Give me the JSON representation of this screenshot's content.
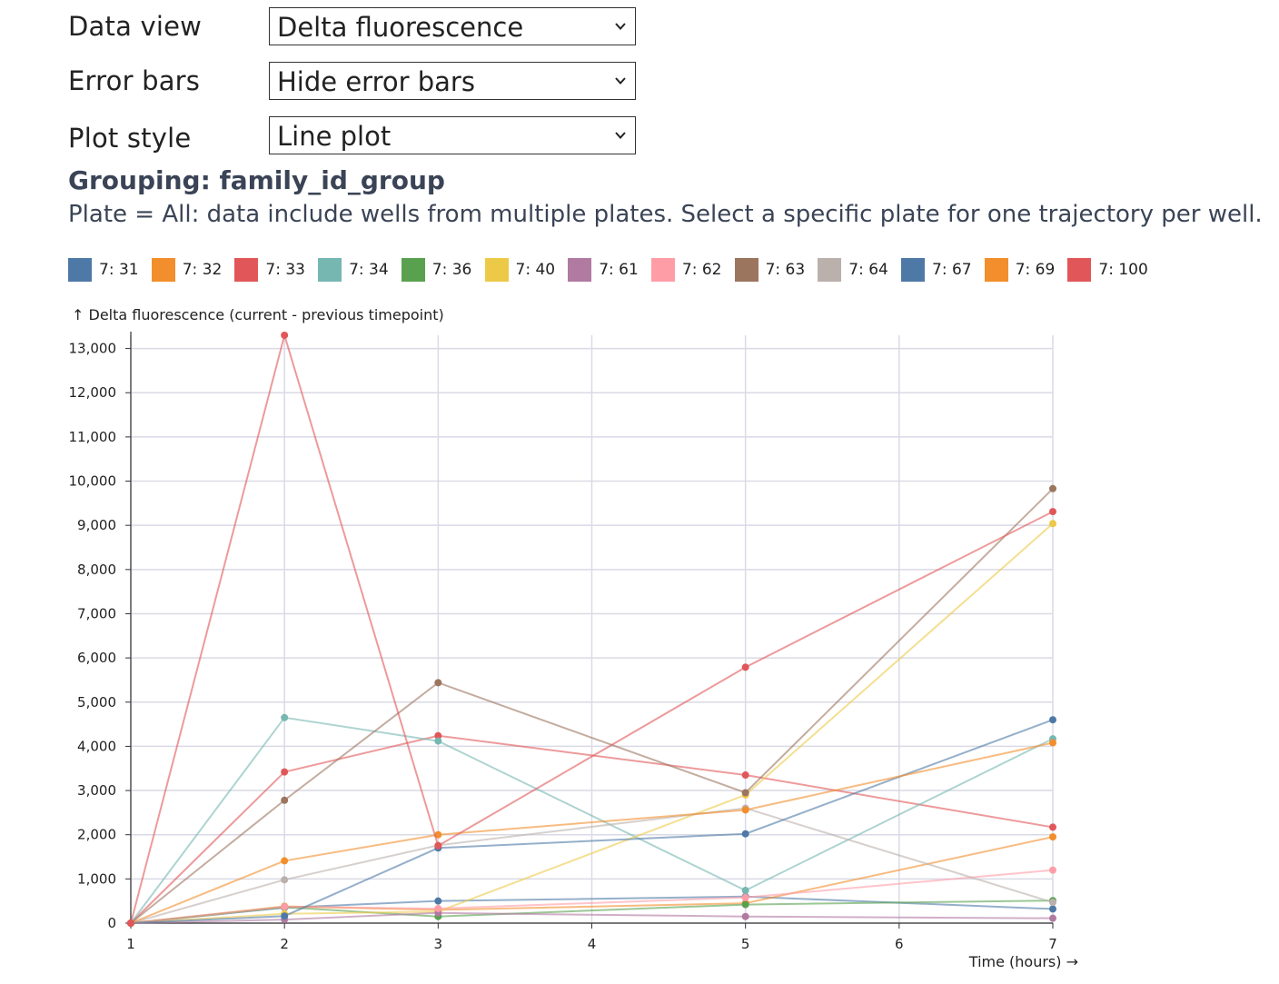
{
  "controls": {
    "data_view": {
      "label": "Data view",
      "value": "Delta fluorescence"
    },
    "error_bars": {
      "label": "Error bars",
      "value": "Hide error bars"
    },
    "plot_style": {
      "label": "Plot style",
      "value": "Line plot"
    }
  },
  "grouping_heading": "Grouping: family_id_group",
  "plate_note": "Plate = All: data include wells from multiple plates. Select a specific plate for one trajectory per well.",
  "icons": {
    "dropdown": "chevron-down-icon"
  },
  "chart_data": {
    "type": "line",
    "title": "",
    "xlabel": "Time (hours) →",
    "ylabel": "↑ Delta fluorescence (current - previous timepoint)",
    "x": [
      1,
      2,
      3,
      5,
      7
    ],
    "xlim": [
      1,
      7
    ],
    "ylim": [
      0,
      13300
    ],
    "xticks": [
      "1",
      "2",
      "3",
      "4",
      "5",
      "6",
      "7"
    ],
    "yticks": [
      "0",
      "1,000",
      "2,000",
      "3,000",
      "4,000",
      "5,000",
      "6,000",
      "7,000",
      "8,000",
      "9,000",
      "10,000",
      "11,000",
      "12,000",
      "13,000"
    ],
    "grid": true,
    "legend_position": "top",
    "series": [
      {
        "name": "7: 31",
        "color": "#4e79a7",
        "values": [
          0,
          350,
          500,
          600,
          320
        ]
      },
      {
        "name": "7: 32",
        "color": "#f28e2b",
        "values": [
          0,
          380,
          300,
          450,
          1950
        ]
      },
      {
        "name": "7: 33",
        "color": "#e15759",
        "values": [
          0,
          3420,
          4240,
          3350,
          2170
        ]
      },
      {
        "name": "7: 34",
        "color": "#76b7b2",
        "values": [
          0,
          4650,
          4120,
          740,
          4170
        ]
      },
      {
        "name": "7: 36",
        "color": "#59a14f",
        "values": [
          0,
          360,
          150,
          420,
          510
        ]
      },
      {
        "name": "7: 40",
        "color": "#edc948",
        "values": [
          0,
          210,
          260,
          2900,
          9040
        ]
      },
      {
        "name": "7: 61",
        "color": "#b07aa1",
        "values": [
          0,
          80,
          230,
          150,
          110
        ]
      },
      {
        "name": "7: 62",
        "color": "#ff9da7",
        "values": [
          0,
          370,
          330,
          580,
          1200
        ]
      },
      {
        "name": "7: 63",
        "color": "#9c755f",
        "values": [
          0,
          2780,
          5440,
          2950,
          9830
        ]
      },
      {
        "name": "7: 64",
        "color": "#bab0ac",
        "values": [
          0,
          980,
          1760,
          2600,
          470
        ]
      },
      {
        "name": "7: 67",
        "color": "#4e79a7",
        "values": [
          0,
          160,
          1700,
          2020,
          4600
        ]
      },
      {
        "name": "7: 69",
        "color": "#f28e2b",
        "values": [
          0,
          1410,
          2000,
          2560,
          4080
        ]
      },
      {
        "name": "7: 100",
        "color": "#e15759",
        "values": [
          0,
          13300,
          1750,
          5790,
          9310
        ]
      }
    ]
  }
}
